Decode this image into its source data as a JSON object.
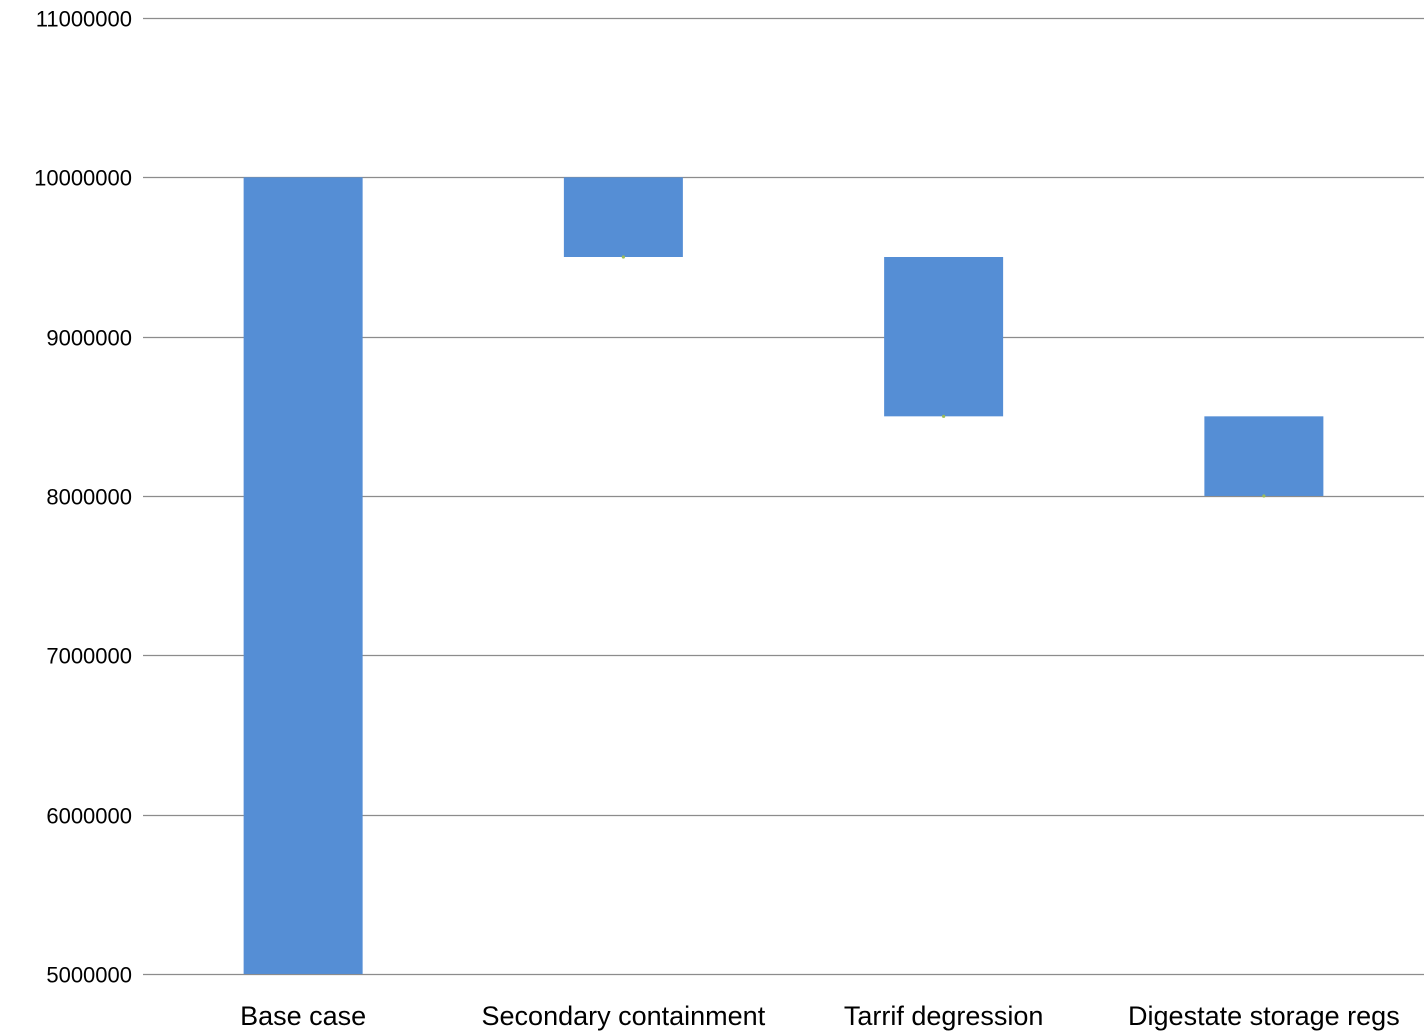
{
  "chart_data": {
    "type": "bar",
    "subtype": "waterfall",
    "title": "",
    "xlabel": "",
    "ylabel": "",
    "categories": [
      "Base case",
      "Secondary containment",
      "Tarrif degression",
      "Digestate storage regs"
    ],
    "bars": [
      {
        "category": "Base case",
        "bottom": 5000000,
        "top": 10000000
      },
      {
        "category": "Secondary containment",
        "bottom": 9500000,
        "top": 10000000
      },
      {
        "category": "Tarrif degression",
        "bottom": 8500000,
        "top": 9500000
      },
      {
        "category": "Digestate storage regs",
        "bottom": 8000000,
        "top": 8500000
      }
    ],
    "ylim": [
      5000000,
      11000000
    ],
    "yticks": [
      5000000,
      6000000,
      7000000,
      8000000,
      9000000,
      10000000,
      11000000
    ],
    "ytick_labels": [
      "5000000",
      "6000000",
      "7000000",
      "8000000",
      "9000000",
      "10000000",
      "11000000"
    ],
    "grid": true,
    "legend": "none",
    "colors": {
      "bar": "#558ED5",
      "grid": "#8C8C8C",
      "marker": "#9BBB59"
    }
  }
}
